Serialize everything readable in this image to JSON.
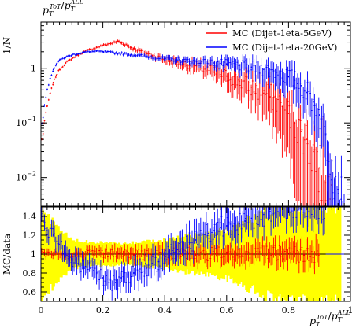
{
  "chart_data": [
    {
      "type": "line",
      "title": "p_T^{ToT}/p_T^{ALL}",
      "ylabel": "1/N",
      "xlabel": "",
      "xlim": [
        0,
        1
      ],
      "ylim": [
        0.003,
        7
      ],
      "yscale": "log",
      "y_tick_labels": [
        {
          "value": 1,
          "base": "1",
          "exp": ""
        },
        {
          "value": 0.1,
          "base": "10",
          "exp": "−1"
        },
        {
          "value": 0.01,
          "base": "10",
          "exp": "−2"
        }
      ],
      "legend_position": "top-right",
      "series": [
        {
          "name": "MC (Dijet-1eta-5GeV)",
          "color": "#ff0000",
          "x": [
            0.005,
            0.01,
            0.02,
            0.03,
            0.04,
            0.05,
            0.06,
            0.08,
            0.1,
            0.12,
            0.14,
            0.16,
            0.18,
            0.2,
            0.22,
            0.24,
            0.25,
            0.26,
            0.28,
            0.3,
            0.32,
            0.34,
            0.36,
            0.4,
            0.44,
            0.48,
            0.52,
            0.56,
            0.6,
            0.64,
            0.68,
            0.72,
            0.74,
            0.76,
            0.78,
            0.8,
            0.82,
            0.84,
            0.86,
            0.88,
            0.9,
            0.92,
            0.94
          ],
          "y": [
            0.05,
            0.1,
            0.2,
            0.35,
            0.55,
            0.75,
            0.95,
            1.25,
            1.5,
            1.75,
            2.0,
            2.2,
            2.4,
            2.6,
            2.8,
            3.0,
            3.1,
            2.9,
            2.6,
            2.3,
            2.1,
            1.9,
            1.7,
            1.45,
            1.3,
            1.15,
            1.0,
            0.85,
            0.72,
            0.58,
            0.45,
            0.35,
            0.3,
            0.25,
            0.2,
            0.15,
            0.1,
            0.07,
            0.05,
            0.03,
            0.015,
            0.008,
            0.004
          ]
        },
        {
          "name": "MC (Dijet-1eta-20GeV)",
          "color": "#0000ff",
          "x": [
            0.005,
            0.01,
            0.02,
            0.03,
            0.04,
            0.05,
            0.06,
            0.08,
            0.1,
            0.12,
            0.14,
            0.16,
            0.18,
            0.2,
            0.24,
            0.28,
            0.32,
            0.36,
            0.4,
            0.44,
            0.48,
            0.52,
            0.56,
            0.6,
            0.64,
            0.68,
            0.72,
            0.76,
            0.8,
            0.82,
            0.84,
            0.86,
            0.88,
            0.9,
            0.92,
            0.94,
            0.95,
            0.96,
            0.97,
            0.98
          ],
          "y": [
            0.1,
            0.2,
            0.4,
            0.65,
            0.95,
            1.2,
            1.4,
            1.6,
            1.75,
            1.85,
            1.95,
            2.0,
            2.05,
            2.0,
            1.9,
            1.8,
            1.7,
            1.6,
            1.5,
            1.42,
            1.35,
            1.3,
            1.25,
            1.2,
            1.12,
            1.05,
            0.95,
            0.85,
            0.7,
            0.6,
            0.48,
            0.36,
            0.24,
            0.14,
            0.06,
            0.02,
            0.01,
            0.006,
            0.004,
            0.003
          ]
        }
      ]
    },
    {
      "type": "line",
      "ylabel": "MC/data",
      "xlabel": "p_T^{ToT}/p_T^{ALL}",
      "xlim": [
        0,
        1
      ],
      "ylim": [
        0.5,
        1.5
      ],
      "x_ticks": [
        0,
        0.2,
        0.4,
        0.6,
        0.8,
        1
      ],
      "x_tick_labels": [
        "0",
        "0.2",
        "0.4",
        "0.6",
        "0.8",
        "1"
      ],
      "y_ticks": [
        0.6,
        0.8,
        1,
        1.2,
        1.4
      ],
      "y_tick_labels": [
        "0.6",
        "0.8",
        "1",
        "1.2",
        "1.4"
      ],
      "reference_line": 1,
      "band": {
        "color": "#ffff00",
        "x": [
          0,
          0.05,
          0.1,
          0.15,
          0.2,
          0.25,
          0.3,
          0.35,
          0.4,
          0.45,
          0.5,
          0.55,
          0.6,
          0.65,
          0.7,
          0.75,
          0.8,
          0.85,
          0.9,
          0.95
        ],
        "half_width": [
          0.48,
          0.3,
          0.15,
          0.13,
          0.12,
          0.11,
          0.12,
          0.14,
          0.16,
          0.18,
          0.2,
          0.22,
          0.26,
          0.32,
          0.4,
          0.48,
          0.5,
          0.5,
          0.5,
          0.5
        ]
      },
      "series": [
        {
          "name": "MC (Dijet-1eta-5GeV)",
          "color": "#ff0000",
          "x": [
            0.02,
            0.05,
            0.1,
            0.15,
            0.2,
            0.25,
            0.3,
            0.35,
            0.4,
            0.45,
            0.5,
            0.55,
            0.6,
            0.65,
            0.7,
            0.75,
            0.8,
            0.85,
            0.9
          ],
          "y": [
            1.0,
            1.0,
            0.98,
            1.02,
            1.0,
            1.01,
            0.99,
            1.0,
            1.0,
            1.01,
            0.99,
            1.0,
            1.02,
            0.98,
            1.0,
            1.0,
            1.01,
            0.99,
            1.0
          ]
        },
        {
          "name": "MC (Dijet-1eta-20GeV)",
          "color": "#0000ff",
          "x": [
            0.005,
            0.02,
            0.04,
            0.06,
            0.08,
            0.1,
            0.12,
            0.14,
            0.16,
            0.18,
            0.2,
            0.22,
            0.24,
            0.26,
            0.28,
            0.3,
            0.32,
            0.34,
            0.36,
            0.38,
            0.4,
            0.42,
            0.44,
            0.46,
            0.48,
            0.5,
            0.52,
            0.54,
            0.56,
            0.58,
            0.6,
            0.62,
            0.64,
            0.66,
            0.68,
            0.7,
            0.72,
            0.74,
            0.76,
            0.78,
            0.8,
            0.82,
            0.84,
            0.86,
            0.88,
            0.9,
            0.92
          ],
          "y": [
            1.4,
            1.25,
            1.2,
            1.1,
            1.0,
            0.95,
            0.9,
            0.85,
            0.85,
            0.8,
            0.75,
            0.7,
            0.7,
            0.75,
            0.78,
            0.8,
            0.82,
            0.85,
            0.9,
            0.92,
            0.95,
            1.0,
            1.05,
            1.1,
            1.12,
            1.15,
            1.2,
            1.22,
            1.25,
            1.28,
            1.3,
            1.3,
            1.32,
            1.35,
            1.38,
            1.4,
            1.42,
            1.45,
            1.48,
            1.5,
            1.5,
            1.5,
            1.5,
            1.5,
            1.5,
            1.5,
            1.5
          ]
        }
      ]
    }
  ]
}
